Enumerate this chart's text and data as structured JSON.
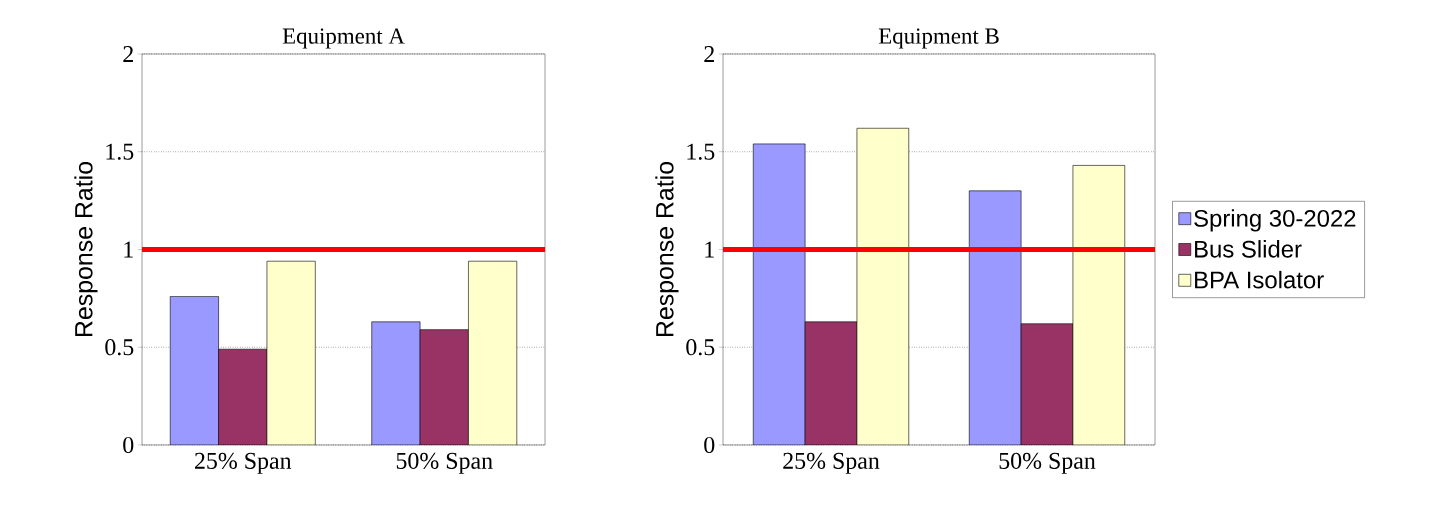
{
  "chart_data": [
    {
      "type": "bar",
      "title": "Equipment A",
      "ylabel": "Response Ratio",
      "categories": [
        "25% Span",
        "50% Span"
      ],
      "series": [
        {
          "color": "#9999ff",
          "values": [
            0.76,
            0.63
          ]
        },
        {
          "color": "#993366",
          "values": [
            0.49,
            0.59
          ]
        },
        {
          "color": "#ffffcc",
          "values": [
            0.94,
            0.94
          ]
        }
      ],
      "ylim": [
        0,
        2
      ],
      "yticks": [
        0,
        0.5,
        1,
        1.5,
        2
      ],
      "grid": "y",
      "legend": false,
      "ref_lines": [
        {
          "axis": "y",
          "value": 1,
          "color": "#ff0000"
        }
      ]
    },
    {
      "type": "bar",
      "title": "Equipment B",
      "ylabel": "Response Ratio",
      "categories": [
        "25% Span",
        "50% Span"
      ],
      "series": [
        {
          "name": "Spring 30-2022",
          "color": "#9999ff",
          "values": [
            1.54,
            1.3
          ]
        },
        {
          "name": "Bus Slider",
          "color": "#993366",
          "values": [
            0.63,
            0.62
          ]
        },
        {
          "name": "BPA Isolator",
          "color": "#ffffcc",
          "values": [
            1.62,
            1.43
          ]
        }
      ],
      "ylim": [
        0,
        2
      ],
      "yticks": [
        0,
        0.5,
        1,
        1.5,
        2
      ],
      "grid": "y",
      "legend": "right",
      "ref_lines": [
        {
          "axis": "y",
          "value": 1,
          "color": "#ff0000"
        }
      ]
    }
  ]
}
